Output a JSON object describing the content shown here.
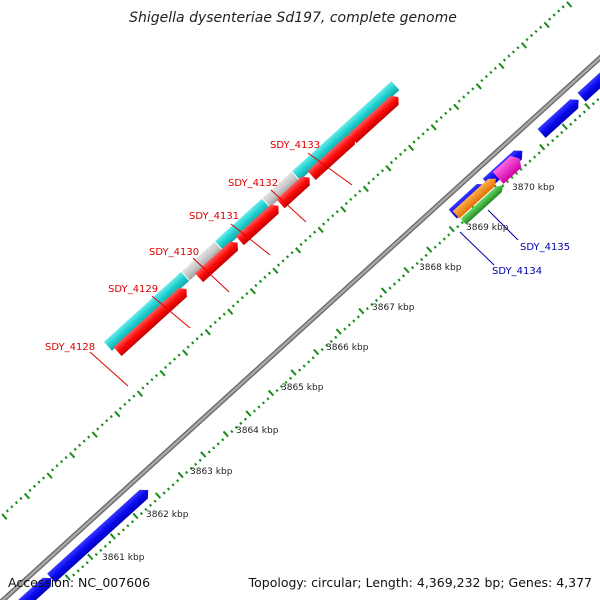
{
  "title": "Shigella dysenteriae Sd197, complete genome",
  "footer": {
    "accession": "Accession: NC_007606",
    "topology": "Topology: circular; Length: 4,369,232 bp; Genes: 4,377"
  },
  "colors": {
    "backbone": "#8c8c8c",
    "blue_gene": "#0a0af0",
    "cyan_gene": "#20d0d0",
    "grey_gene": "#c8c8c8",
    "red_gene": "#ff0a0a",
    "orange_gene": "#ff8c00",
    "green_gene": "#33bb33",
    "magenta_gene": "#ff22cc",
    "tick_green": "#1a8c1a",
    "label_red": "#dd0000",
    "label_blue": "#0000aa"
  },
  "scale_labels": [
    "3861 kbp",
    "3862 kbp",
    "3863 kbp",
    "3864 kbp",
    "3865 kbp",
    "3866 kbp",
    "3867 kbp",
    "3868 kbp",
    "3869 kbp",
    "3870 kbp"
  ],
  "gene_labels": [
    {
      "text": "SDY_4133",
      "color": "red"
    },
    {
      "text": "SDY_4132",
      "color": "red"
    },
    {
      "text": "SDY_4131",
      "color": "red"
    },
    {
      "text": "SDY_4130",
      "color": "red"
    },
    {
      "text": "SDY_4129",
      "color": "red"
    },
    {
      "text": "SDY_4128",
      "color": "red"
    },
    {
      "text": "SDY_4135",
      "color": "blue"
    },
    {
      "text": "SDY_4134",
      "color": "blue"
    }
  ]
}
